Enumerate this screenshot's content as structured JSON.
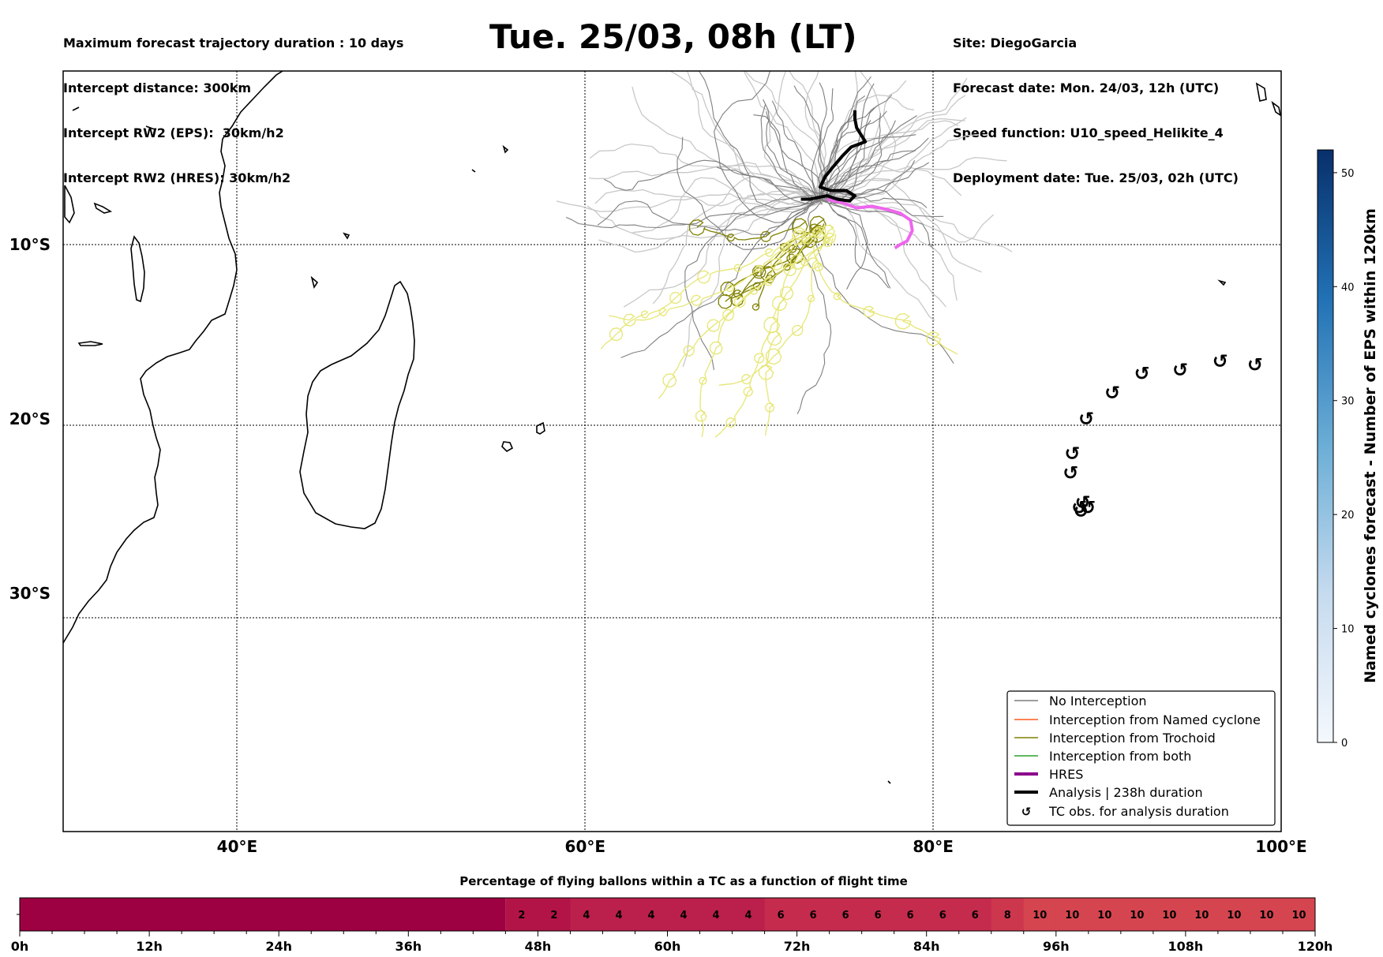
{
  "header": {
    "left": [
      "Maximum forecast trajectory duration : 10 days",
      "Intercept distance: 300km",
      "Intercept RW2 (EPS):  30km/h2",
      "Intercept RW2 (HRES): 30km/h2"
    ],
    "title": "Tue. 25/03, 08h (LT)",
    "right": [
      "Site: DiegoGarcia",
      "Forecast date: Mon. 24/03, 12h (UTC)",
      "Speed function: U10_speed_Helikite_4",
      "Deployment date: Tue. 25/03, 02h (UTC)"
    ]
  },
  "colors": {
    "no_interception": "#7f7f7f",
    "named_cyclone": "#ff5a1f",
    "trochoid": "#808000",
    "both": "#2ca02c",
    "hres": "#8b008b",
    "hres_tail": "#ee66ee",
    "analysis": "#000000",
    "eps_light": "#c8c8c8",
    "trochoid_light": "#e6e675",
    "colorbar_low": "#f4f8fd",
    "colorbar_high": "#08306b",
    "timebar_dark": "#9e0142",
    "timebar_mid": "#bd1f4a",
    "timebar_light": "#d5454f"
  },
  "chart_data": [
    {
      "type": "line",
      "map_extent": {
        "lon": [
          30,
          100
        ],
        "lat": [
          -43.5,
          -0.2
        ]
      },
      "xticks": [
        {
          "value": 40,
          "label": "40°E"
        },
        {
          "value": 60,
          "label": "60°E"
        },
        {
          "value": 80,
          "label": "80°E"
        },
        {
          "value": 100,
          "label": "100°E"
        }
      ],
      "yticks": [
        {
          "value": -10,
          "label": "10°S"
        },
        {
          "value": -20,
          "label": "20°S"
        },
        {
          "value": -30,
          "label": "30°S"
        }
      ],
      "grid": true,
      "legend_position": "lower-right",
      "legend": [
        {
          "label": "No Interception",
          "style": "no_interception"
        },
        {
          "label": "Interception from Named cyclone",
          "style": "named_cyclone"
        },
        {
          "label": "Interception from Trochoid",
          "style": "trochoid"
        },
        {
          "label": "Interception from both",
          "style": "both"
        },
        {
          "label": "HRES",
          "style": "hres"
        },
        {
          "label": "Analysis | 238h duration",
          "style": "analysis"
        },
        {
          "label": "TC obs. for analysis duration",
          "style": "marker"
        }
      ],
      "analysis_track": {
        "lon": [
          75.5,
          75.5,
          75.6,
          76.1,
          75.3,
          74.8,
          74.2,
          73.8,
          73.5,
          74.1,
          75.0,
          75.5,
          75.2,
          74.5,
          73.9,
          73.4,
          72.9,
          72.4
        ],
        "lat": [
          -2.3,
          -2.8,
          -3.3,
          -4.1,
          -4.4,
          -4.9,
          -5.6,
          -6.1,
          -6.7,
          -6.9,
          -6.9,
          -7.2,
          -7.5,
          -7.4,
          -7.2,
          -7.3,
          -7.4,
          -7.4
        ]
      },
      "hres_track": {
        "lon": [
          73.9,
          74.8,
          75.6,
          76.5,
          77.4,
          78.1,
          78.7,
          78.8,
          78.5,
          78.1,
          77.8
        ],
        "lat": [
          -7.4,
          -7.6,
          -7.9,
          -7.8,
          -8.0,
          -8.2,
          -8.6,
          -9.2,
          -9.8,
          -10.0,
          -10.2
        ]
      },
      "tc_obs": {
        "lon": [
          98.5,
          96.5,
          94.2,
          92.0,
          90.3,
          88.8,
          88.0,
          87.9,
          88.6,
          88.9,
          88.5,
          88.4
        ],
        "lat": [
          -16.9,
          -16.7,
          -17.2,
          -17.4,
          -18.5,
          -20.0,
          -22.0,
          -23.1,
          -24.8,
          -25.1,
          -25.3,
          -25.1
        ]
      },
      "eps_start": {
        "lon": 73.5,
        "lat": -7.4
      }
    },
    {
      "type": "heatmap",
      "title": "Percentage of flying ballons within a TC as a function of flight time",
      "x_range": [
        0,
        120
      ],
      "xticks": [
        "0h",
        "12h",
        "24h",
        "36h",
        "48h",
        "60h",
        "72h",
        "84h",
        "96h",
        "108h",
        "120h"
      ],
      "bin_hours": 3,
      "start_hour": 45,
      "values": [
        "2",
        "2",
        "4",
        "4",
        "4",
        "4",
        "4",
        "4",
        "6",
        "6",
        "6",
        "6",
        "6",
        "6",
        "6",
        "8",
        "10",
        "10",
        "10",
        "10",
        "10",
        "10",
        "10",
        "10",
        "10"
      ]
    },
    {
      "type": "heatmap",
      "label": "Named cyclones forecast - Number of EPS within 120km",
      "range": [
        0,
        52
      ],
      "ticks": [
        "0",
        "10",
        "20",
        "30",
        "40",
        "50"
      ]
    }
  ]
}
